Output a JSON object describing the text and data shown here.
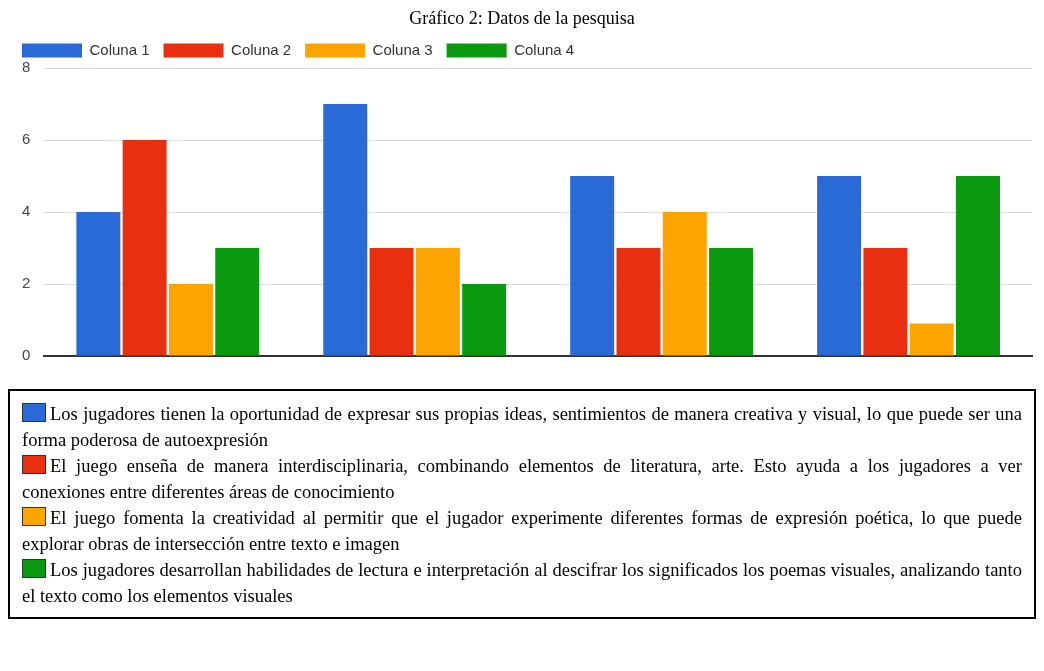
{
  "chart_data": {
    "type": "bar",
    "title": "Gráfico 2: Datos de la pesquisa",
    "categories": [
      null,
      null,
      null,
      null
    ],
    "series": [
      {
        "name": "Coluna 1",
        "color": "#2a6ad6",
        "values": [
          4,
          7,
          5,
          5
        ]
      },
      {
        "name": "Coluna 2",
        "color": "#e83010",
        "values": [
          6,
          3,
          3,
          3
        ]
      },
      {
        "name": "Coluna 3",
        "color": "#fca400",
        "values": [
          2,
          3,
          4,
          0.9
        ]
      },
      {
        "name": "Coluna 4",
        "color": "#0a9a10",
        "values": [
          3,
          2,
          3,
          5
        ]
      }
    ],
    "ylim": [
      0,
      8
    ],
    "yticks": [
      0,
      2,
      4,
      6,
      8
    ],
    "grid": "y",
    "legend": "top left",
    "annotations": [
      "Los jugadores tienen la oportunidad de expresar sus propias ideas, sentimientos de manera creativa y visual, lo que puede ser una forma poderosa de autoexpresión",
      "El juego enseña de manera interdisciplinaria, combinando elementos de literatura, arte. Esto ayuda a los jugadores a ver conexiones entre diferentes áreas de conocimiento",
      "El juego fomenta la creatividad al permitir que el jugador experimente diferentes formas de expresión poética, lo que puede explorar obras de intersección entre texto e imagen",
      "Los jugadores desarrollan habilidades de lectura e interpretación al descifrar los significados los poemas visuales, analizando tanto el texto como los elementos visuales"
    ]
  }
}
